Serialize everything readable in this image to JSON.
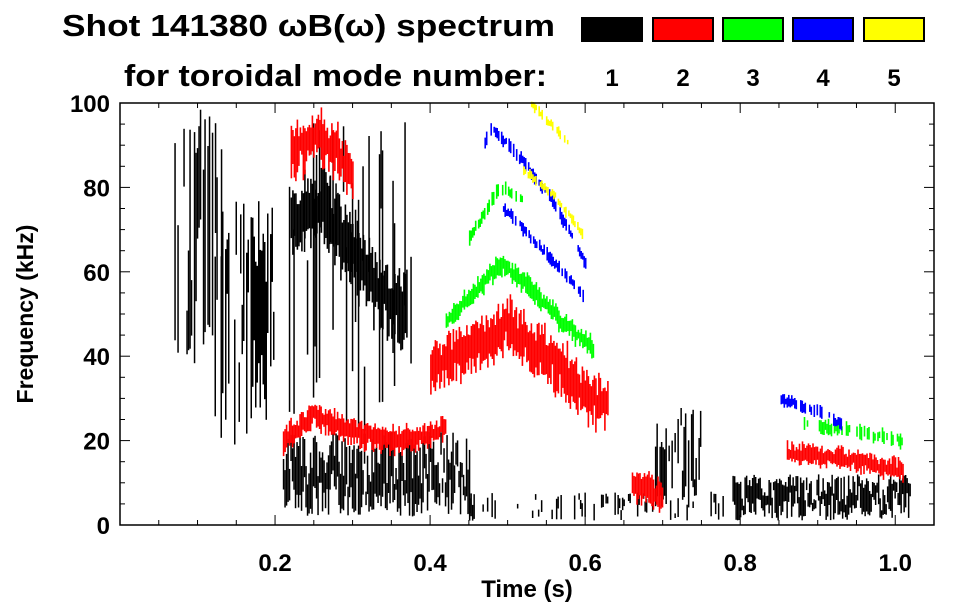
{
  "chart_data": {
    "type": "heatmap",
    "title_line1": "Shot 141380 ωB(ω) spectrum",
    "title_line2": "for toroidal mode number:",
    "xlabel": "Time (s)",
    "ylabel": "Frequency (kHz)",
    "xlim": [
      0.0,
      1.05
    ],
    "ylim": [
      0,
      100
    ],
    "xticks": [
      0.2,
      0.4,
      0.6,
      0.8,
      1.0
    ],
    "xtick_labels": [
      "0.2",
      "0.4",
      "0.6",
      "0.8",
      "1.0"
    ],
    "xminor_step": 0.05,
    "yticks": [
      0,
      20,
      40,
      60,
      80,
      100
    ],
    "ytick_labels": [
      "0",
      "20",
      "40",
      "60",
      "80",
      "100"
    ],
    "yminor_step": 5,
    "legend": {
      "placement": "top-right",
      "entries": [
        {
          "label": "1",
          "color": "#000000"
        },
        {
          "label": "2",
          "color": "#ff0000"
        },
        {
          "label": "3",
          "color": "#00ff00"
        },
        {
          "label": "4",
          "color": "#0000ff"
        },
        {
          "label": "5",
          "color": "#ffff00"
        }
      ]
    },
    "features": [
      {
        "mode": 1,
        "kind": "block",
        "t": [
          0.07,
          0.13
        ],
        "f": [
          35,
          100
        ],
        "density": 0.5
      },
      {
        "mode": 1,
        "kind": "block",
        "t": [
          0.12,
          0.2
        ],
        "f": [
          18,
          78
        ],
        "density": 0.55
      },
      {
        "mode": 1,
        "kind": "block",
        "t": [
          0.21,
          0.38
        ],
        "f": [
          22,
          100
        ],
        "density": 0.18
      },
      {
        "mode": 1,
        "kind": "ridge",
        "t": [
          0.22,
          0.26,
          0.3,
          0.33,
          0.37
        ],
        "f": [
          72,
          76,
          64,
          55,
          50
        ],
        "width": 14
      },
      {
        "mode": 1,
        "kind": "block",
        "t": [
          0.21,
          0.45
        ],
        "f": [
          2,
          22
        ],
        "density": 0.85
      },
      {
        "mode": 1,
        "kind": "block",
        "t": [
          0.45,
          0.78
        ],
        "f": [
          1,
          8
        ],
        "density": 0.08
      },
      {
        "mode": 1,
        "kind": "block",
        "t": [
          0.69,
          0.75
        ],
        "f": [
          4,
          28
        ],
        "density": 0.4
      },
      {
        "mode": 1,
        "kind": "block",
        "t": [
          0.79,
          1.02
        ],
        "f": [
          1,
          12
        ],
        "density": 0.85
      },
      {
        "mode": 2,
        "kind": "ridge",
        "t": [
          0.22,
          0.25,
          0.28,
          0.3
        ],
        "f": [
          88,
          92,
          88,
          82
        ],
        "width": 10
      },
      {
        "mode": 2,
        "kind": "ridge",
        "t": [
          0.21,
          0.25,
          0.3,
          0.35,
          0.4,
          0.42
        ],
        "f": [
          20,
          26,
          22,
          20,
          21,
          24
        ],
        "width": 5
      },
      {
        "mode": 2,
        "kind": "ridge",
        "t": [
          0.4,
          0.45,
          0.5,
          0.55,
          0.6,
          0.63
        ],
        "f": [
          36,
          42,
          47,
          40,
          31,
          29
        ],
        "width": 10
      },
      {
        "mode": 2,
        "kind": "ridge",
        "t": [
          0.66,
          0.7
        ],
        "f": [
          10,
          6
        ],
        "width": 6
      },
      {
        "mode": 2,
        "kind": "ridge",
        "t": [
          0.86,
          0.92,
          1.01
        ],
        "f": [
          17,
          16,
          13
        ],
        "width": 4
      },
      {
        "mode": 3,
        "kind": "ridge",
        "t": [
          0.45,
          0.49,
          0.52
        ],
        "f": [
          68,
          80,
          77
        ],
        "width": 3
      },
      {
        "mode": 3,
        "kind": "ridge",
        "t": [
          0.42,
          0.46,
          0.49,
          0.53,
          0.57,
          0.61
        ],
        "f": [
          48,
          56,
          62,
          56,
          48,
          42
        ],
        "width": 4
      },
      {
        "mode": 3,
        "kind": "ridge",
        "t": [
          0.88,
          0.95,
          1.01
        ],
        "f": [
          24,
          22,
          20
        ],
        "width": 3
      },
      {
        "mode": 4,
        "kind": "ridge",
        "t": [
          0.47,
          0.48,
          0.52,
          0.56,
          0.6
        ],
        "f": [
          91,
          94,
          86,
          76,
          62
        ],
        "width": 2.5
      },
      {
        "mode": 4,
        "kind": "ridge",
        "t": [
          0.49,
          0.52,
          0.56,
          0.6
        ],
        "f": [
          76,
          70,
          62,
          54
        ],
        "width": 2.5
      },
      {
        "mode": 4,
        "kind": "ridge",
        "t": [
          0.85,
          0.9,
          0.93
        ],
        "f": [
          30,
          27,
          24
        ],
        "width": 2.5
      },
      {
        "mode": 5,
        "kind": "ridge",
        "t": [
          0.53,
          0.58
        ],
        "f": [
          100,
          90
        ],
        "width": 2
      },
      {
        "mode": 5,
        "kind": "ridge",
        "t": [
          0.52,
          0.56,
          0.6
        ],
        "f": [
          84,
          78,
          68
        ],
        "width": 2
      }
    ]
  }
}
